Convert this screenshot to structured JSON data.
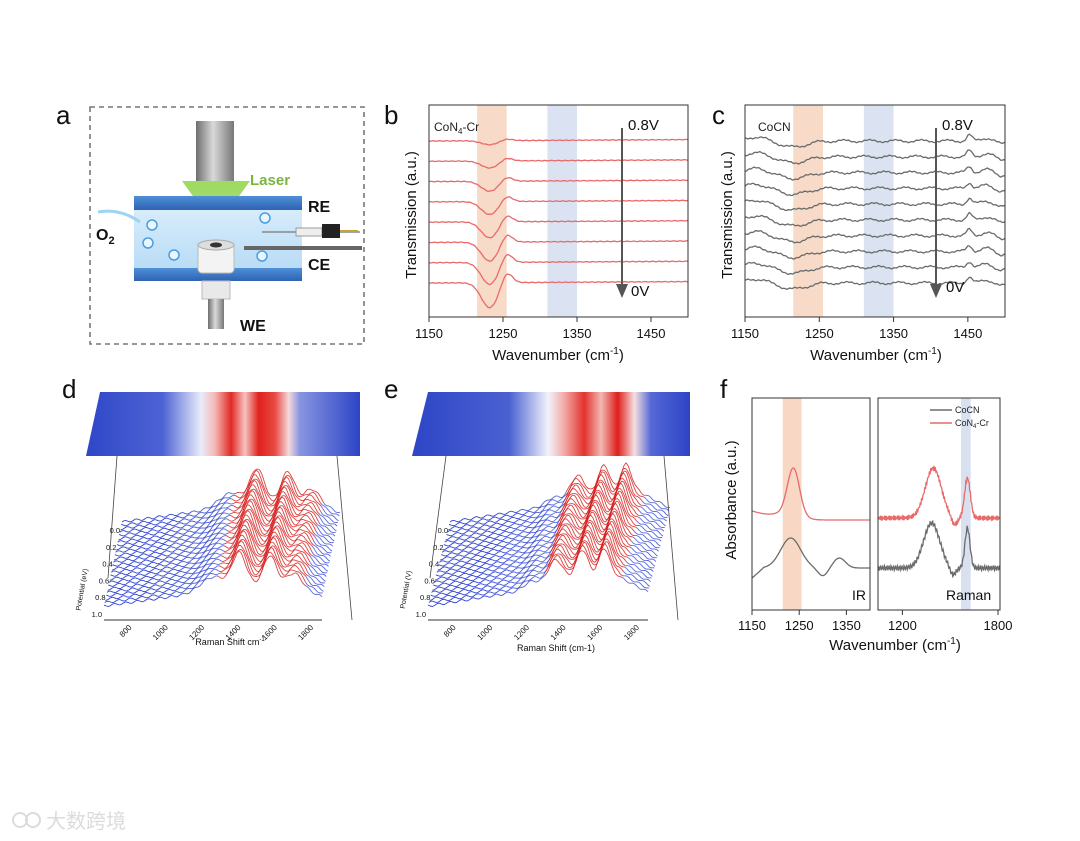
{
  "panels": {
    "a": {
      "letter": "a",
      "laser": "Laser",
      "re": "RE",
      "ce": "CE",
      "we": "WE",
      "o2": "O",
      "o2_sub": "2"
    },
    "b": {
      "letter": "b",
      "sample": "CoN",
      "sample_sub": "4",
      "sample_tail": "-Cr",
      "v_top": "0.8V",
      "v_bottom": "0V",
      "ylabel": "Transmission (a.u.)",
      "xlabel": "Wavenumber (cm",
      "xlabel_sup": "-1",
      "xlabel_tail": ")"
    },
    "c": {
      "letter": "c",
      "sample": "CoCN",
      "v_top": "0.8V",
      "v_bottom": "0V",
      "ylabel": "Transmission (a.u.)",
      "xlabel": "Wavenumber (cm",
      "xlabel_sup": "-1",
      "xlabel_tail": ")"
    },
    "d": {
      "letter": "d",
      "xlabel": "Raman Shift  cm",
      "xlabel_sup": "-1",
      "potential_label": "Potential (eV)"
    },
    "e": {
      "letter": "e",
      "xlabel": "Raman Shift (cm-1)",
      "potential_label": "Potential (V)"
    },
    "f": {
      "letter": "f",
      "ylabel": "Absorbance (a.u.)",
      "xlabel": "Wavenumber (cm",
      "xlabel_sup": "-1",
      "xlabel_tail": ")",
      "ir": "IR",
      "raman": "Raman",
      "legend_cocn": "CoCN",
      "legend_con4": "CoN",
      "legend_con4_sub": "4",
      "legend_con4_tail": "-Cr"
    }
  },
  "watermark": "大数跨境",
  "colors": {
    "red": "#e86a6a",
    "gray": "#6b6b6b",
    "orange_band": "#f6cdb6",
    "blue_band": "#cfd9ee",
    "blue": "#2b3fd1",
    "red_deep": "#d6201f"
  },
  "chart_data": [
    {
      "type": "line",
      "id": "b",
      "title": "CoN4-Cr",
      "xlabel": "Wavenumber (cm-1)",
      "ylabel": "Transmission (a.u.)",
      "xlim": [
        1150,
        1500
      ],
      "ticks": [
        "1150",
        "1250",
        "1350",
        "1450"
      ],
      "tick_values": [
        1150,
        1250,
        1350,
        1450
      ],
      "bands": [
        [
          1215,
          1255
        ],
        [
          1310,
          1350
        ]
      ],
      "n_curves": 8,
      "dip_center": 1232
    },
    {
      "type": "line",
      "id": "c",
      "title": "CoCN",
      "xlabel": "Wavenumber (cm-1)",
      "ylabel": "Transmission (a.u.)",
      "xlim": [
        1150,
        1500
      ],
      "ticks": [
        "1150",
        "1250",
        "1350",
        "1450"
      ],
      "tick_values": [
        1150,
        1250,
        1350,
        1450
      ],
      "bands": [
        [
          1215,
          1255
        ],
        [
          1310,
          1350
        ]
      ],
      "n_curves": 10
    },
    {
      "type": "line",
      "id": "d",
      "xlabel": "Raman Shift cm-1",
      "ylabel": "Potential (eV)",
      "x_ticks": [
        "800",
        "1000",
        "1200",
        "1400",
        "1600",
        "1800"
      ],
      "potential_ticks": [
        "0.0",
        "0.2",
        "0.4",
        "0.6",
        "0.8",
        "1.0"
      ],
      "n_curves": 26
    },
    {
      "type": "line",
      "id": "e",
      "xlabel": "Raman Shift (cm-1)",
      "ylabel": "Potential (V)",
      "x_ticks": [
        "800",
        "1000",
        "1200",
        "1400",
        "1600",
        "1800"
      ],
      "potential_ticks": [
        "0.0",
        "0.2",
        "0.4",
        "0.6",
        "0.8",
        "1.0"
      ],
      "n_curves": 26
    },
    {
      "type": "line",
      "id": "f-ir",
      "xlabel": "Wavenumber (cm-1)",
      "ylabel": "Absorbance (a.u.)",
      "xlim": [
        1150,
        1400
      ],
      "ticks": [
        "1150",
        "1250",
        "1350"
      ],
      "tick_values": [
        1150,
        1250,
        1350
      ],
      "band": [
        1215,
        1255
      ],
      "series": [
        {
          "name": "CoN4-Cr"
        },
        {
          "name": "CoCN"
        }
      ]
    },
    {
      "type": "line",
      "id": "f-raman",
      "xlim": [
        1050,
        1800
      ],
      "ticks": [
        "1200",
        "1800"
      ],
      "tick_values": [
        1200,
        1800
      ],
      "band": [
        1560,
        1620
      ],
      "series": [
        {
          "name": "CoCN"
        },
        {
          "name": "CoN4-Cr"
        }
      ]
    }
  ]
}
